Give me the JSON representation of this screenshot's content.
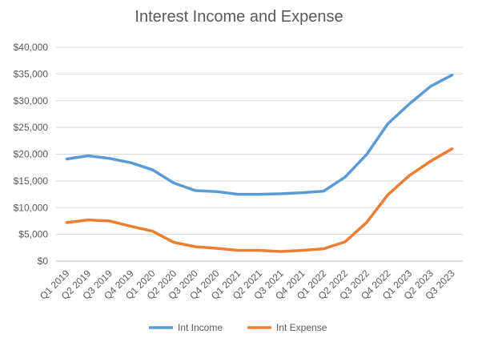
{
  "chart_data": {
    "type": "line",
    "title": "Interest Income and Expense",
    "xlabel": "",
    "ylabel": "",
    "ylim": [
      0,
      40000
    ],
    "yticks": [
      "$0",
      "$5,000",
      "$10,000",
      "$15,000",
      "$20,000",
      "$25,000",
      "$30,000",
      "$35,000",
      "$40,000"
    ],
    "ytick_values": [
      0,
      5000,
      10000,
      15000,
      20000,
      25000,
      30000,
      35000,
      40000
    ],
    "grid": true,
    "legend_position": "bottom",
    "categories": [
      "Q1 2019",
      "Q2 2019",
      "Q3 2019",
      "Q4 2019",
      "Q1 2020",
      "Q2 2020",
      "Q3 2020",
      "Q4 2020",
      "Q1 2021",
      "Q2 2021",
      "Q3 2021",
      "Q4 2021",
      "Q1 2022",
      "Q2 2022",
      "Q3 2022",
      "Q4 2022",
      "Q1 2023",
      "Q2 2023",
      "Q3 2023"
    ],
    "series": [
      {
        "name": "Int Income",
        "color": "#5B9BD5",
        "values": [
          19100,
          19700,
          19200,
          18400,
          17100,
          14600,
          13200,
          13000,
          12500,
          12500,
          12600,
          12800,
          13100,
          15700,
          19900,
          25700,
          29400,
          32700,
          34800
        ]
      },
      {
        "name": "Int Expense",
        "color": "#ED7D31",
        "values": [
          7200,
          7700,
          7500,
          6500,
          5600,
          3500,
          2700,
          2400,
          2000,
          2000,
          1800,
          2000,
          2300,
          3600,
          7200,
          12400,
          16000,
          18700,
          21000
        ]
      }
    ]
  }
}
